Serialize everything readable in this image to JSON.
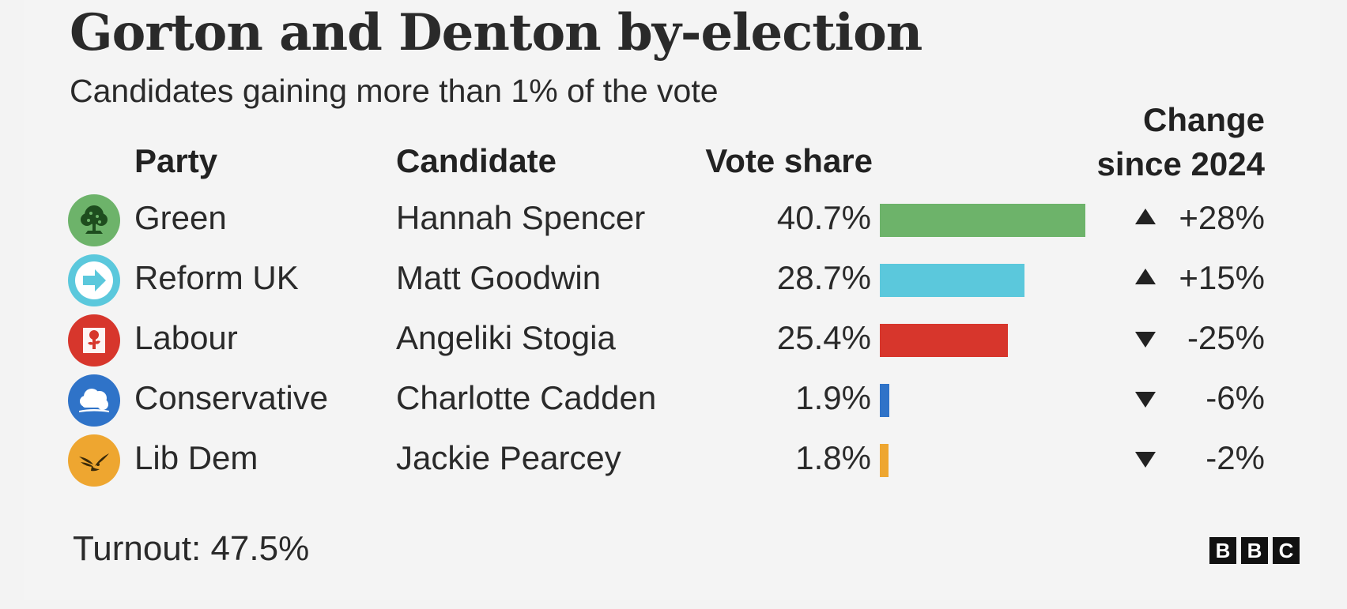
{
  "title": "Gorton and Denton by-election",
  "subtitle": "Candidates gaining more than 1% of the vote",
  "headers": {
    "party": "Party",
    "candidate": "Candidate",
    "vote_share": "Vote share",
    "change_line1": "Change",
    "change_line2": "since 2024"
  },
  "footer": {
    "turnout": "Turnout: 47.5%",
    "logo_letters": [
      "B",
      "B",
      "C"
    ]
  },
  "chart_data": {
    "type": "bar",
    "title": "Gorton and Denton by-election",
    "subtitle": "Candidates gaining more than 1% of the vote",
    "rows": [
      {
        "party": "Green",
        "candidate": "Hannah Spencer",
        "share": 40.7,
        "share_label": "40.7%",
        "change": 28,
        "change_label": "+28%",
        "direction": "up",
        "color": "#6db36a",
        "icon": "tree-icon",
        "logo_bg": "#6db36a"
      },
      {
        "party": "Reform UK",
        "candidate": "Matt Goodwin",
        "share": 28.7,
        "share_label": "28.7%",
        "change": 15,
        "change_label": "+15%",
        "direction": "up",
        "color": "#5bc8dc",
        "icon": "arrow-icon",
        "logo_bg": "#5bc8dc"
      },
      {
        "party": "Labour",
        "candidate": "Angeliki Stogia",
        "share": 25.4,
        "share_label": "25.4%",
        "change": -25,
        "change_label": "-25%",
        "direction": "down",
        "color": "#d7362c",
        "icon": "rose-icon",
        "logo_bg": "#d7362c"
      },
      {
        "party": "Conservative",
        "candidate": "Charlotte Cadden",
        "share": 1.9,
        "share_label": "1.9%",
        "change": -6,
        "change_label": "-6%",
        "direction": "down",
        "color": "#2f73c8",
        "icon": "tree-cloud-icon",
        "logo_bg": "#2f73c8"
      },
      {
        "party": "Lib Dem",
        "candidate": "Jackie Pearcey",
        "share": 1.8,
        "share_label": "1.8%",
        "change": -2,
        "change_label": "-2%",
        "direction": "down",
        "color": "#eea630",
        "icon": "bird-icon",
        "logo_bg": "#eea630"
      }
    ],
    "xlim": [
      0,
      40.7
    ]
  }
}
